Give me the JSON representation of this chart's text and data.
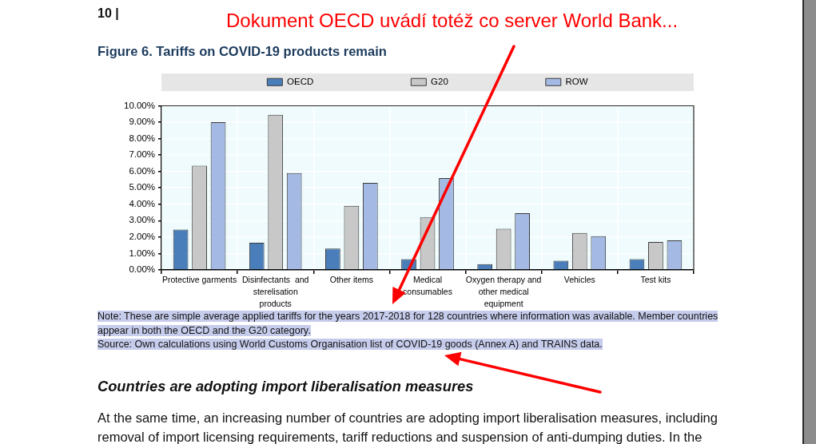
{
  "chart_data": {
    "type": "bar",
    "title": "Figure 6. Tariffs on COVID-19 products remain",
    "categories": [
      "Protective garments",
      "Disinfectants  and sterelisation products",
      "Other items",
      "Medical consumables",
      "Oxygen therapy and other medical equipment",
      "Vehicles",
      "Test kits"
    ],
    "series": [
      {
        "name": "OECD",
        "color": "#4a7ebb",
        "values": [
          2.45,
          1.65,
          1.3,
          0.65,
          0.35,
          0.55,
          0.65
        ]
      },
      {
        "name": "G20",
        "color": "#c8c8c8",
        "values": [
          6.35,
          9.45,
          3.9,
          3.2,
          2.5,
          2.25,
          1.7
        ]
      },
      {
        "name": "ROW",
        "color": "#a4b9e3",
        "values": [
          9.0,
          5.9,
          5.3,
          5.6,
          3.45,
          2.05,
          1.8
        ]
      }
    ],
    "ylim": [
      0,
      10
    ],
    "yticks": [
      {
        "value": 0,
        "label": "0.00%"
      },
      {
        "value": 1,
        "label": "1.00%"
      },
      {
        "value": 2,
        "label": "2.00%"
      },
      {
        "value": 3,
        "label": "3.00%"
      },
      {
        "value": 4,
        "label": "4.00%"
      },
      {
        "value": 5,
        "label": "5.00%"
      },
      {
        "value": 6,
        "label": "6.00%"
      },
      {
        "value": 7,
        "label": "7.00%"
      },
      {
        "value": 8,
        "label": "8.00%"
      },
      {
        "value": 9,
        "label": "9.00%"
      },
      {
        "value": 10,
        "label": "10.00%"
      }
    ],
    "grid": true,
    "legend": "top",
    "annotations": [
      "10 |",
      "Dokument OECD uvádí totéž co server World Bank...",
      "Note: These are simple average applied tariffs for the years 2017-2018 for 128 countries where information was available. Member countries appear in both the OECD and the G20 category.",
      "Source: Own calculations using World Customs Organisation list of COVID-19 goods (Annex A) and TRAINS data.",
      "Countries are adopting import liberalisation measures",
      "At the same time, an increasing number of countries are adopting import liberalisation measures, including removal of import licensing requirements, tariff reductions and suspension of anti-dumping duties. In the"
    ]
  }
}
